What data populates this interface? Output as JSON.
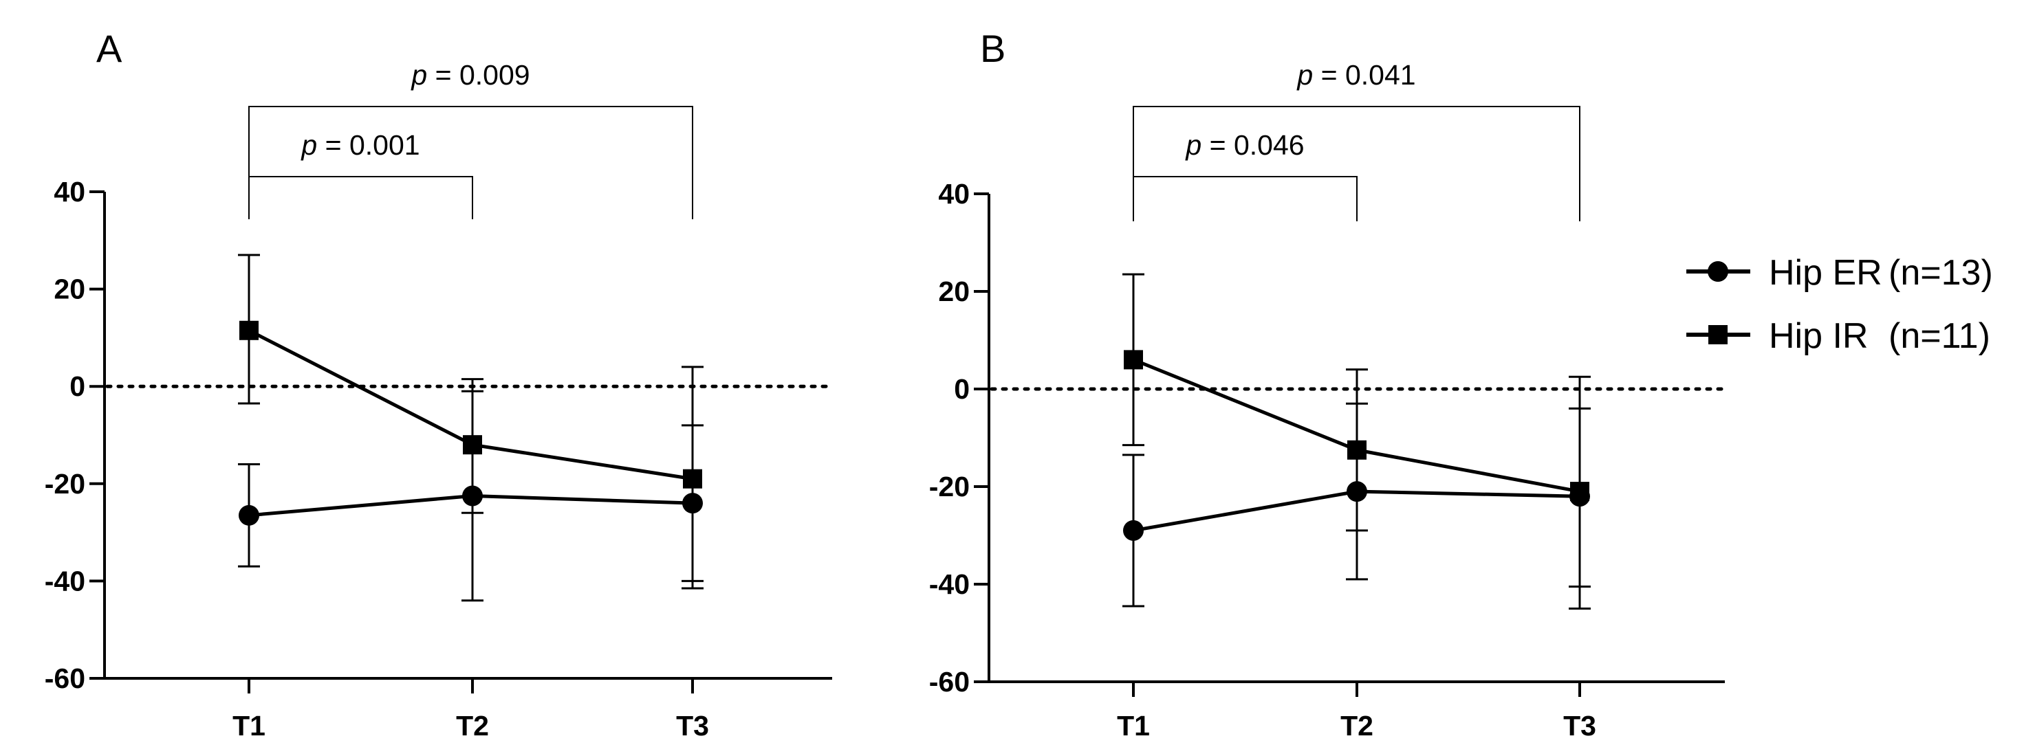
{
  "chart_data": [
    {
      "panel_label": "A",
      "type": "line",
      "categories": [
        "T1",
        "T2",
        "T3"
      ],
      "ylim": [
        -60,
        40
      ],
      "yticks": [
        -60,
        -40,
        -20,
        0,
        20,
        40
      ],
      "ytick_labels": [
        "-60",
        "-40",
        "-20",
        "0",
        "20",
        "40"
      ],
      "reference_line": 0,
      "series": [
        {
          "name": "Hip ER",
          "marker": "circle",
          "values": [
            -26.5,
            -22.5,
            -24
          ],
          "error_upper": [
            -16,
            -1,
            -8
          ],
          "error_lower": [
            -37,
            -44,
            -40
          ]
        },
        {
          "name": "Hip IR",
          "marker": "square",
          "values": [
            11.5,
            -12,
            -19
          ],
          "error_upper": [
            27,
            1.5,
            4
          ],
          "error_lower": [
            -3.5,
            -26,
            -41.5
          ]
        }
      ],
      "significance": [
        {
          "from": "T1",
          "to": "T2",
          "p_prefix": "p",
          "p_value": " = 0.001"
        },
        {
          "from": "T1",
          "to": "T3",
          "p_prefix": "p",
          "p_value": " = 0.009"
        }
      ]
    },
    {
      "panel_label": "B",
      "type": "line",
      "categories": [
        "T1",
        "T2",
        "T3"
      ],
      "ylim": [
        -60,
        40
      ],
      "yticks": [
        -60,
        -40,
        -20,
        0,
        20,
        40
      ],
      "ytick_labels": [
        "-60",
        "-40",
        "-20",
        "0",
        "20",
        "40"
      ],
      "reference_line": 0,
      "series": [
        {
          "name": "Hip ER",
          "marker": "circle",
          "values": [
            -29,
            -21,
            -22
          ],
          "error_upper": [
            -13.5,
            -3,
            -4
          ],
          "error_lower": [
            -44.5,
            -39,
            -40.5
          ]
        },
        {
          "name": "Hip IR",
          "marker": "square",
          "values": [
            6,
            -12.5,
            -21
          ],
          "error_upper": [
            23.5,
            4,
            2.5
          ],
          "error_lower": [
            -11.5,
            -29,
            -45
          ]
        }
      ],
      "significance": [
        {
          "from": "T1",
          "to": "T2",
          "p_prefix": "p",
          "p_value": " = 0.046"
        },
        {
          "from": "T1",
          "to": "T3",
          "p_prefix": "p",
          "p_value": " = 0.041"
        }
      ]
    }
  ],
  "legend": {
    "position": "right",
    "items": [
      {
        "name": "Hip ER",
        "count": "(n=13)",
        "marker": "circle"
      },
      {
        "name": "Hip IR",
        "count": "(n=11)",
        "marker": "square"
      }
    ]
  }
}
